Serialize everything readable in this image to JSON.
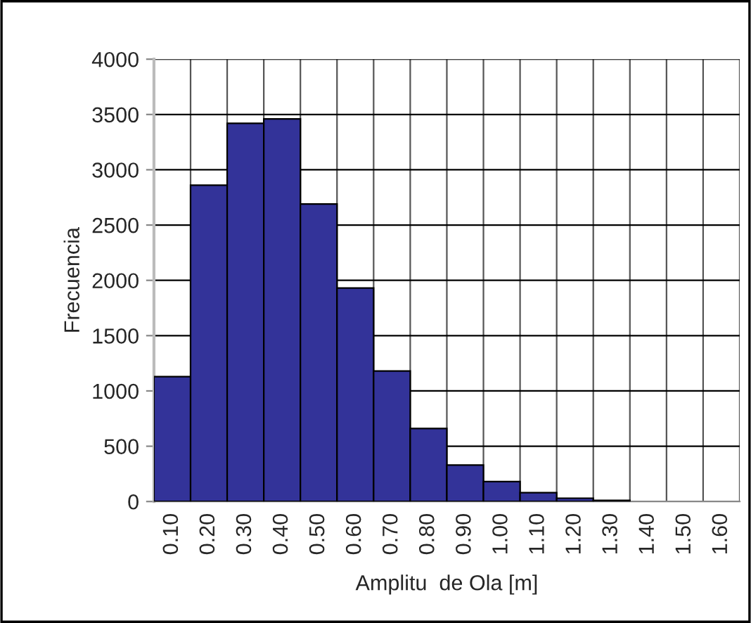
{
  "chart_data": {
    "type": "bar",
    "xlabel": "Amplitu  de Ola [m]",
    "ylabel": "Frecuencia",
    "categories": [
      "0.10",
      "0.20",
      "0.30",
      "0.40",
      "0.50",
      "0.60",
      "0.70",
      "0.80",
      "0.90",
      "1.00",
      "1.10",
      "1.20",
      "1.30",
      "1.40",
      "1.50",
      "1.60"
    ],
    "values": [
      1130,
      2860,
      3420,
      3460,
      2690,
      1930,
      1180,
      660,
      330,
      180,
      80,
      30,
      10,
      0,
      0,
      0
    ],
    "color": "#333399",
    "ylim": [
      0,
      4000
    ],
    "yticks": [
      0,
      500,
      1000,
      1500,
      2000,
      2500,
      3000,
      3500,
      4000
    ],
    "grid": true
  }
}
